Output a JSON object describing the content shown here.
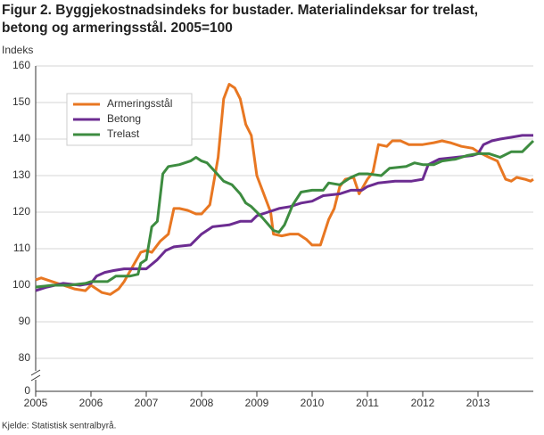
{
  "chart_data": {
    "type": "line",
    "title": [
      "Figur 2. Byggjekostnadsindeks for bustader. Materialindeksar for trelast,",
      "betong og armeringsstål. 2005=100"
    ],
    "ylabel": "Indeks",
    "source": "Kjelde: Statistisk sentralbyrå.",
    "xlim": [
      2005,
      2014
    ],
    "xticks": [
      2005,
      2006,
      2007,
      2008,
      2009,
      2010,
      2011,
      2012,
      2013
    ],
    "ylim": [
      0,
      160
    ],
    "yticks": [
      0,
      80,
      90,
      100,
      110,
      120,
      130,
      140,
      150,
      160
    ],
    "axis_break": true,
    "grid": true,
    "legend": "upper left",
    "series": [
      {
        "name": "Armeringsstål",
        "color": "#e87722",
        "x": [
          2005.0,
          2005.1,
          2005.3,
          2005.5,
          2005.7,
          2005.9,
          2006.0,
          2006.2,
          2006.35,
          2006.5,
          2006.6,
          2006.75,
          2006.9,
          2007.0,
          2007.1,
          2007.25,
          2007.4,
          2007.5,
          2007.6,
          2007.75,
          2007.9,
          2008.0,
          2008.15,
          2008.3,
          2008.4,
          2008.5,
          2008.6,
          2008.7,
          2008.8,
          2008.9,
          2009.0,
          2009.1,
          2009.25,
          2009.3,
          2009.45,
          2009.6,
          2009.75,
          2009.9,
          2010.0,
          2010.15,
          2010.3,
          2010.4,
          2010.5,
          2010.6,
          2010.75,
          2010.85,
          2011.0,
          2011.1,
          2011.2,
          2011.35,
          2011.45,
          2011.6,
          2011.75,
          2012.0,
          2012.2,
          2012.35,
          2012.5,
          2012.7,
          2012.9,
          2013.0,
          2013.2,
          2013.35,
          2013.5,
          2013.6,
          2013.7,
          2013.85,
          2013.95,
          2014.0
        ],
        "values": [
          101.5,
          102,
          101,
          100,
          99,
          98.5,
          100,
          98,
          97.5,
          99,
          101,
          105,
          109,
          109.5,
          109,
          112,
          114,
          121,
          121,
          120.5,
          119.5,
          119.5,
          122,
          135,
          151,
          155,
          154,
          151,
          144,
          141,
          130,
          126,
          120,
          114,
          113.5,
          114,
          114,
          112.5,
          111,
          111,
          118,
          121,
          127,
          129,
          129.5,
          125,
          129,
          131,
          138.5,
          138,
          139.5,
          139.5,
          138.5,
          138.5,
          139,
          139.5,
          139,
          138,
          137.5,
          136.5,
          135,
          134,
          129,
          128.5,
          129.5,
          129,
          128.5,
          129
        ]
      },
      {
        "name": "Betong",
        "color": "#6c2c91",
        "x": [
          2005.0,
          2005.2,
          2005.5,
          2005.8,
          2006.0,
          2006.1,
          2006.25,
          2006.4,
          2006.6,
          2006.9,
          2007.0,
          2007.2,
          2007.35,
          2007.5,
          2007.8,
          2008.0,
          2008.2,
          2008.5,
          2008.7,
          2008.9,
          2009.0,
          2009.2,
          2009.4,
          2009.6,
          2009.8,
          2010.0,
          2010.2,
          2010.5,
          2010.7,
          2010.9,
          2011.0,
          2011.2,
          2011.5,
          2011.8,
          2012.0,
          2012.1,
          2012.3,
          2012.6,
          2012.9,
          2013.0,
          2013.1,
          2013.25,
          2013.4,
          2013.6,
          2013.8,
          2014.0
        ],
        "values": [
          98.5,
          99.5,
          100.5,
          100,
          100.5,
          102.5,
          103.5,
          104,
          104.5,
          104.5,
          104.5,
          107,
          109.5,
          110.5,
          111,
          114,
          116,
          116.5,
          117.5,
          117.5,
          119,
          120,
          121,
          121.5,
          122.5,
          123,
          124.5,
          125,
          126,
          126,
          127,
          128,
          128.5,
          128.5,
          129,
          133,
          134.5,
          135,
          135.5,
          136,
          138.5,
          139.5,
          140,
          140.5,
          141,
          141
        ]
      },
      {
        "name": "Trelast",
        "color": "#3d8c40",
        "x": [
          2005.0,
          2005.3,
          2005.6,
          2005.9,
          2006.0,
          2006.3,
          2006.45,
          2006.7,
          2006.85,
          2006.9,
          2007.0,
          2007.1,
          2007.2,
          2007.3,
          2007.4,
          2007.6,
          2007.8,
          2007.9,
          2008.0,
          2008.1,
          2008.25,
          2008.4,
          2008.55,
          2008.7,
          2008.8,
          2008.9,
          2009.1,
          2009.3,
          2009.4,
          2009.5,
          2009.65,
          2009.8,
          2010.0,
          2010.2,
          2010.3,
          2010.5,
          2010.7,
          2010.85,
          2011.0,
          2011.25,
          2011.4,
          2011.7,
          2011.85,
          2012.0,
          2012.2,
          2012.35,
          2012.6,
          2012.8,
          2013.0,
          2013.2,
          2013.4,
          2013.6,
          2013.8,
          2013.9,
          2014.0
        ],
        "values": [
          99.5,
          100,
          100,
          100.5,
          101,
          101,
          102.5,
          102.5,
          103,
          106,
          107,
          116,
          117.5,
          130.5,
          132.5,
          133,
          134,
          135,
          134,
          133.5,
          131,
          128.5,
          127.5,
          125,
          122.5,
          121.5,
          118.5,
          115,
          114.5,
          116.5,
          122,
          125.5,
          126,
          126,
          128,
          127.5,
          129.5,
          130.5,
          130.5,
          130,
          132,
          132.5,
          133.5,
          133,
          133,
          134,
          134.5,
          135.5,
          136,
          136,
          135,
          136.5,
          136.5,
          138,
          139.5
        ]
      }
    ]
  }
}
